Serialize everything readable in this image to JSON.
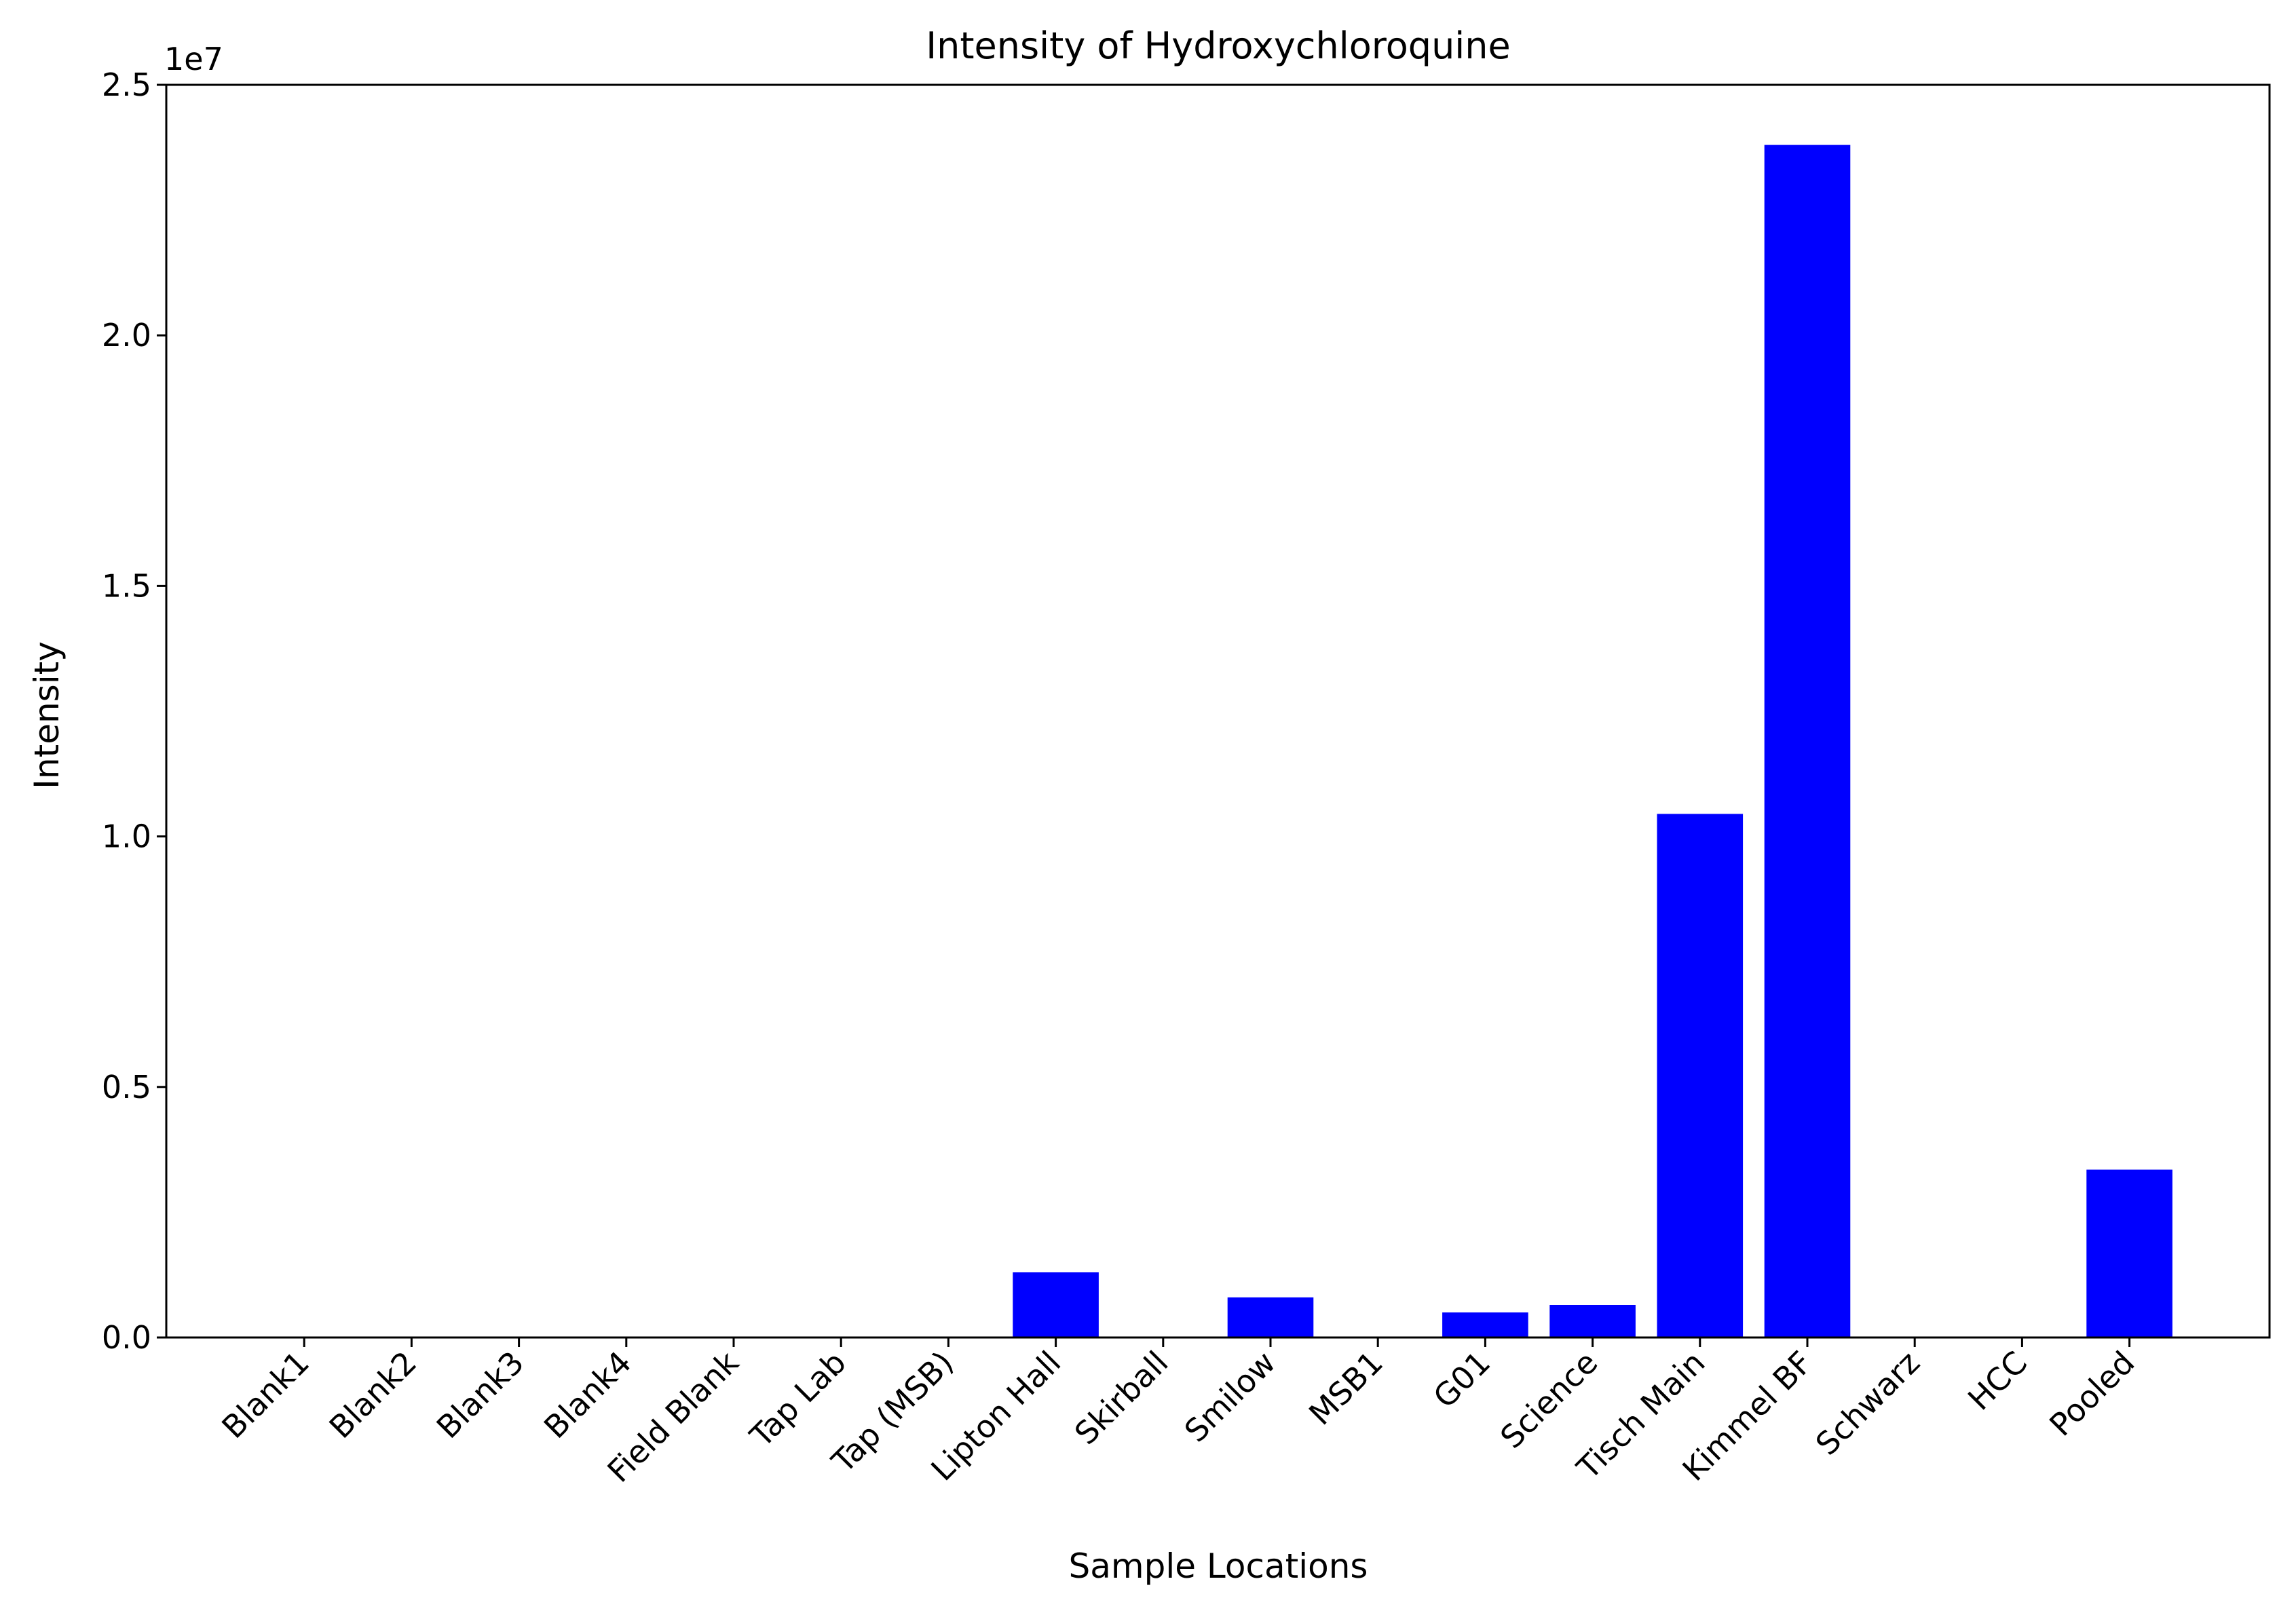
{
  "chart_data": {
    "type": "bar",
    "title": "Intensity of Hydroxychloroquine",
    "xlabel": "Sample Locations",
    "ylabel": "Intensity",
    "y_offset_label": "1e7",
    "y_tick_labels": [
      "0.0",
      "0.5",
      "1.0",
      "1.5",
      "2.0",
      "2.5"
    ],
    "y_ticks": [
      0,
      5000000,
      10000000,
      15000000,
      20000000,
      25000000
    ],
    "ylim": [
      0,
      25000000
    ],
    "grid": false,
    "bar_color": "#0000ff",
    "categories": [
      "Blank1",
      "Blank2",
      "Blank3",
      "Blank4",
      "Field Blank",
      "Tap Lab",
      "Tap (MSB)",
      "Lipton Hall",
      "Skirball",
      "Smilow",
      "MSB1",
      "G01",
      "Science",
      "Tisch Main",
      "Kimmel BF",
      "Schwarz",
      "HCC",
      "Pooled"
    ],
    "values": [
      0,
      0,
      0,
      0,
      0,
      0,
      0,
      1300000,
      0,
      800000,
      0,
      500000,
      650000,
      10450000,
      23800000,
      0,
      0,
      3350000
    ]
  }
}
